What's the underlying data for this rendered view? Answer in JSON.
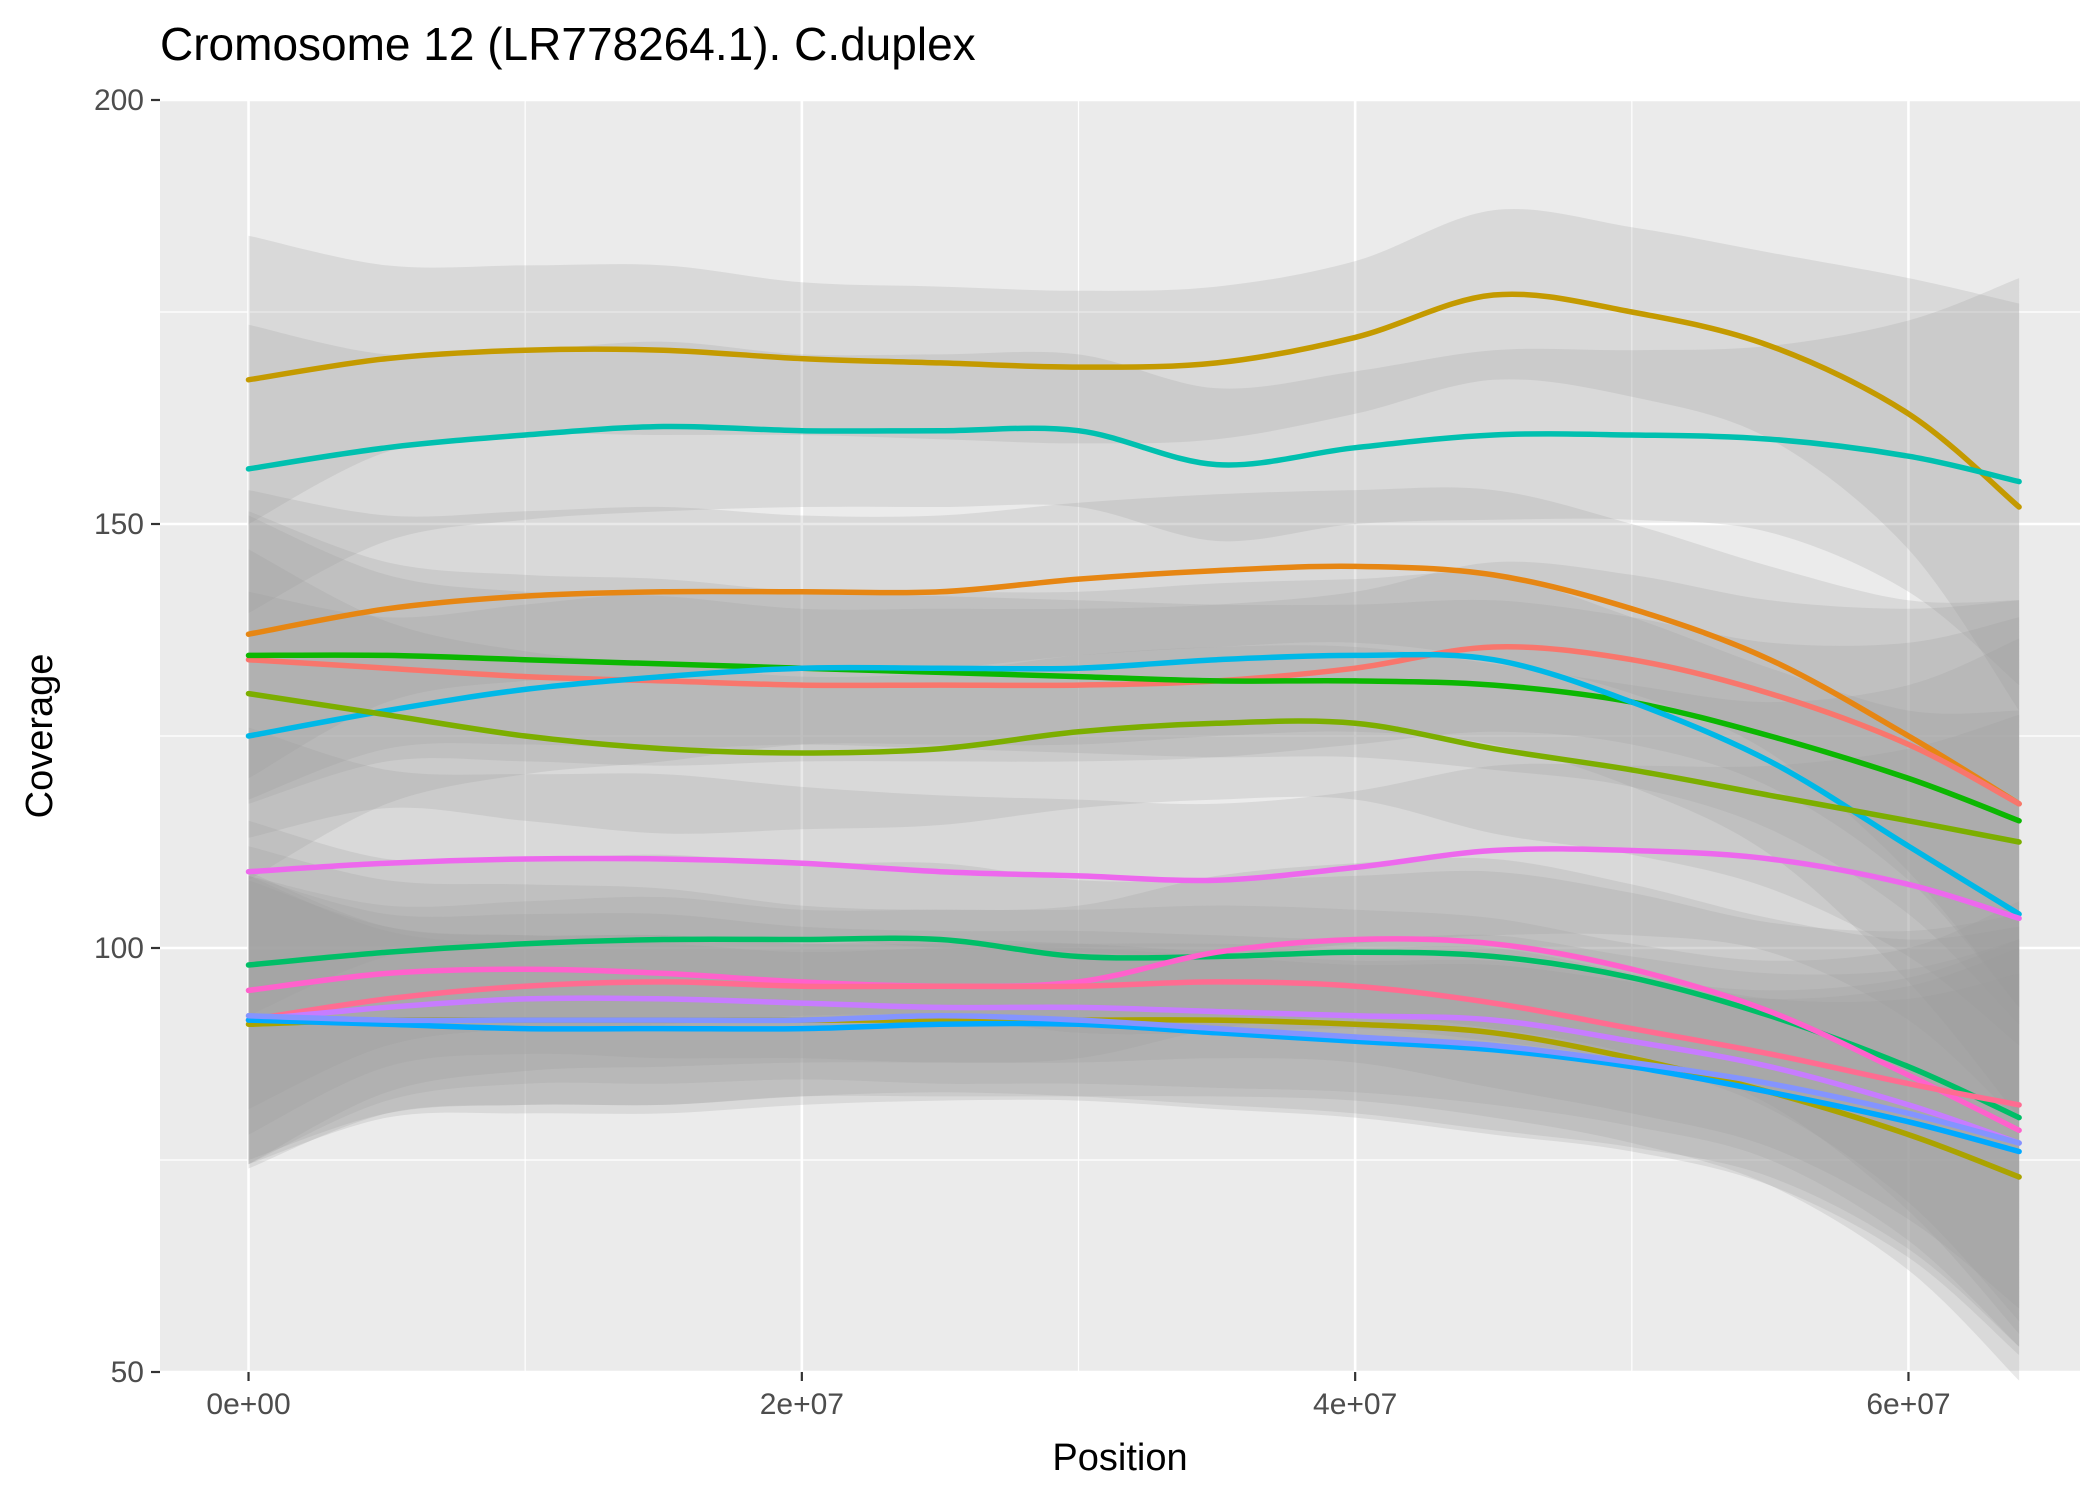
{
  "chart_data": {
    "type": "line",
    "title": "Cromosome 12 (LR778264.1). C.duplex",
    "xlabel": "Position",
    "ylabel": "Coverage",
    "xlim": [
      -3200000,
      66200000
    ],
    "ylim": [
      50,
      200
    ],
    "xticks": [
      0,
      20000000,
      40000000,
      60000000
    ],
    "xtick_labels": [
      "0e+00",
      "2e+07",
      "4e+07",
      "6e+07"
    ],
    "yticks": [
      50,
      100,
      150,
      200
    ],
    "ytick_labels": [
      "50",
      "100",
      "150",
      "200"
    ],
    "grid": true,
    "panel_background": "#ebebeb",
    "ribbon_color": "#999999",
    "x": [
      0,
      5000000,
      10000000,
      15000000,
      20000000,
      25000000,
      30000000,
      35000000,
      40000000,
      45000000,
      50000000,
      55000000,
      60000000,
      64000000
    ],
    "series": [
      {
        "color": "#C49A00",
        "values": [
          167,
          169.5,
          170.5,
          170.5,
          169.5,
          169,
          168.5,
          169,
          172,
          177,
          175,
          171,
          163,
          152
        ],
        "band": [
          17,
          11,
          10,
          10,
          9,
          9,
          9,
          9,
          9,
          10,
          10,
          11,
          16,
          24
        ]
      },
      {
        "color": "#00C0AF",
        "values": [
          156.5,
          159,
          160.5,
          161.5,
          161,
          161,
          161,
          157,
          159,
          160.5,
          160.5,
          160,
          158,
          155
        ],
        "band": [
          17,
          11,
          10,
          10,
          9,
          9,
          9,
          9,
          9,
          10,
          10,
          11,
          16,
          24
        ]
      },
      {
        "color": "#E68613",
        "values": [
          137,
          140,
          141.5,
          142,
          142,
          142,
          143.5,
          144.5,
          145,
          144,
          140,
          134,
          125,
          117
        ],
        "band": [
          17,
          11,
          10,
          10,
          9,
          9,
          9,
          9,
          9,
          10,
          10,
          11,
          16,
          24
        ]
      },
      {
        "color": "#F8766D",
        "values": [
          134,
          133,
          132,
          131.5,
          131,
          131,
          131,
          131.5,
          133,
          135.5,
          134,
          130,
          124,
          117
        ],
        "band": [
          17,
          11,
          10,
          10,
          9,
          9,
          9,
          9,
          9,
          10,
          10,
          11,
          16,
          24
        ]
      },
      {
        "color": "#0CB702",
        "values": [
          134.5,
          134.5,
          134,
          133.5,
          133,
          132.5,
          132,
          131.5,
          131.5,
          131,
          129,
          125,
          120,
          115
        ],
        "band": [
          17,
          11,
          10,
          10,
          9,
          9,
          9,
          9,
          9,
          10,
          10,
          11,
          16,
          24
        ]
      },
      {
        "color": "#00B8E7",
        "values": [
          125,
          128,
          130.5,
          132,
          133,
          133,
          133,
          134,
          134.5,
          134,
          129,
          122,
          112,
          104
        ],
        "band": [
          17,
          11,
          10,
          10,
          9,
          9,
          9,
          9,
          9,
          10,
          10,
          11,
          16,
          24
        ]
      },
      {
        "color": "#7CAE00",
        "values": [
          130,
          127.5,
          125,
          123.5,
          123,
          123.5,
          125.5,
          126.5,
          126.5,
          123.5,
          121,
          118,
          115,
          112.5
        ],
        "band": [
          17,
          11,
          10,
          10,
          9,
          9,
          9,
          9,
          9,
          10,
          10,
          11,
          16,
          24
        ]
      },
      {
        "color": "#ED68ED",
        "values": [
          109,
          110,
          110.5,
          110.5,
          110,
          109,
          108.5,
          108,
          109.5,
          111.5,
          111.5,
          110.5,
          107.5,
          103.5
        ],
        "band": [
          17,
          11,
          10,
          10,
          9,
          9,
          9,
          9,
          9,
          10,
          10,
          11,
          16,
          24
        ]
      },
      {
        "color": "#00BE67",
        "values": [
          98,
          99.5,
          100.5,
          101,
          101,
          101,
          99,
          99,
          99.5,
          99,
          96.5,
          92,
          86,
          80
        ],
        "band": [
          17,
          11,
          10,
          10,
          9,
          9,
          9,
          9,
          9,
          10,
          10,
          11,
          16,
          24
        ]
      },
      {
        "color": "#FF61CC",
        "values": [
          95,
          97,
          97.5,
          97,
          96,
          95.5,
          96,
          99.5,
          101,
          100.5,
          97.5,
          92.5,
          85,
          78.5
        ],
        "band": [
          17,
          11,
          10,
          10,
          9,
          9,
          9,
          9,
          9,
          10,
          10,
          11,
          16,
          24
        ]
      },
      {
        "color": "#FF6C91",
        "values": [
          91.5,
          94,
          95.5,
          96,
          95.5,
          95.5,
          95.5,
          96,
          95.5,
          93.5,
          90.5,
          87.5,
          84,
          81.5
        ],
        "band": [
          17,
          11,
          10,
          10,
          9,
          9,
          9,
          9,
          9,
          10,
          10,
          11,
          16,
          24
        ]
      },
      {
        "color": "#C77CFF",
        "values": [
          91.5,
          93,
          94,
          94,
          93.5,
          93,
          93,
          92.5,
          92,
          91.5,
          89,
          86,
          81.5,
          77
        ],
        "band": [
          17,
          11,
          10,
          10,
          9,
          9,
          9,
          9,
          9,
          10,
          10,
          11,
          16,
          24
        ]
      },
      {
        "color": "#ABA300",
        "values": [
          91,
          91.5,
          91.5,
          91.5,
          91.5,
          91.5,
          91.5,
          91.5,
          91,
          90,
          87,
          83,
          78,
          73
        ],
        "band": [
          17,
          11,
          10,
          10,
          9,
          9,
          9,
          9,
          9,
          10,
          10,
          11,
          16,
          24
        ]
      },
      {
        "color": "#00A9FF",
        "values": [
          91.5,
          91,
          90.5,
          90.5,
          90.5,
          91,
          91,
          90,
          89,
          88,
          86,
          83,
          79.5,
          76
        ],
        "band": [
          17,
          11,
          10,
          10,
          9,
          9,
          9,
          9,
          9,
          10,
          10,
          11,
          16,
          24
        ]
      },
      {
        "color": "#8494FF",
        "values": [
          92,
          91.5,
          91.5,
          91.5,
          91.5,
          92,
          91.5,
          90.5,
          89.5,
          88.5,
          86.5,
          84,
          80.5,
          77
        ],
        "band": [
          17,
          11,
          10,
          10,
          9,
          9,
          9,
          9,
          9,
          10,
          10,
          11,
          16,
          24
        ]
      }
    ]
  }
}
